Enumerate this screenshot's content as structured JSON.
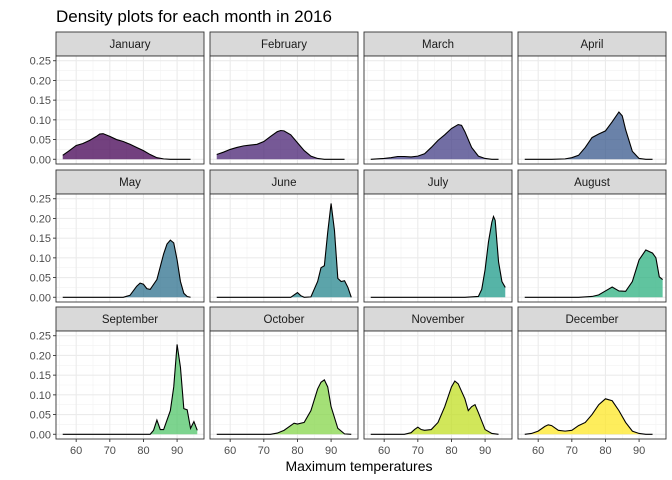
{
  "chart_data": {
    "type": "area",
    "title": "Density plots for each month in 2016",
    "xlabel": "Maximum temperatures",
    "ylabel": "",
    "xlim": [
      54,
      98
    ],
    "ylim": [
      -0.012,
      0.262
    ],
    "x_ticks": [
      60,
      70,
      80,
      90
    ],
    "y_ticks": [
      0.0,
      0.05,
      0.1,
      0.15,
      0.2,
      0.25
    ],
    "y_tick_labels": [
      "0.00",
      "0.05",
      "0.10",
      "0.15",
      "0.20",
      "0.25"
    ],
    "grid": true,
    "layout": "facet_wrap 3 rows x 4 columns",
    "panels": [
      {
        "month": "January",
        "color": "#440154",
        "points": [
          [
            56,
            0.01
          ],
          [
            58,
            0.022
          ],
          [
            60,
            0.035
          ],
          [
            62,
            0.04
          ],
          [
            64,
            0.048
          ],
          [
            66,
            0.058
          ],
          [
            67,
            0.064
          ],
          [
            68,
            0.065
          ],
          [
            70,
            0.058
          ],
          [
            72,
            0.05
          ],
          [
            74,
            0.045
          ],
          [
            76,
            0.038
          ],
          [
            78,
            0.03
          ],
          [
            80,
            0.022
          ],
          [
            82,
            0.012
          ],
          [
            84,
            0.004
          ],
          [
            86,
            0.001
          ],
          [
            88,
            0.0
          ],
          [
            90,
            0.0
          ],
          [
            92,
            0.0
          ],
          [
            94,
            0.0
          ]
        ]
      },
      {
        "month": "February",
        "color": "#482173",
        "points": [
          [
            56,
            0.012
          ],
          [
            58,
            0.018
          ],
          [
            60,
            0.025
          ],
          [
            62,
            0.03
          ],
          [
            64,
            0.034
          ],
          [
            66,
            0.036
          ],
          [
            68,
            0.038
          ],
          [
            70,
            0.045
          ],
          [
            72,
            0.058
          ],
          [
            74,
            0.07
          ],
          [
            75,
            0.073
          ],
          [
            76,
            0.072
          ],
          [
            78,
            0.062
          ],
          [
            80,
            0.042
          ],
          [
            82,
            0.022
          ],
          [
            84,
            0.008
          ],
          [
            86,
            0.002
          ],
          [
            88,
            0.0
          ],
          [
            90,
            0.0
          ],
          [
            92,
            0.0
          ],
          [
            94,
            0.0
          ]
        ]
      },
      {
        "month": "March",
        "color": "#433E85",
        "points": [
          [
            56,
            0.0
          ],
          [
            60,
            0.002
          ],
          [
            62,
            0.004
          ],
          [
            64,
            0.007
          ],
          [
            66,
            0.007
          ],
          [
            68,
            0.006
          ],
          [
            70,
            0.008
          ],
          [
            72,
            0.014
          ],
          [
            74,
            0.03
          ],
          [
            76,
            0.048
          ],
          [
            78,
            0.062
          ],
          [
            80,
            0.078
          ],
          [
            82,
            0.088
          ],
          [
            83,
            0.086
          ],
          [
            84,
            0.07
          ],
          [
            86,
            0.03
          ],
          [
            88,
            0.008
          ],
          [
            90,
            0.002
          ],
          [
            92,
            0.0
          ],
          [
            94,
            0.0
          ]
        ]
      },
      {
        "month": "April",
        "color": "#38588C",
        "points": [
          [
            56,
            0.0
          ],
          [
            64,
            0.0
          ],
          [
            68,
            0.001
          ],
          [
            70,
            0.004
          ],
          [
            72,
            0.01
          ],
          [
            74,
            0.03
          ],
          [
            76,
            0.055
          ],
          [
            78,
            0.064
          ],
          [
            80,
            0.072
          ],
          [
            82,
            0.095
          ],
          [
            84,
            0.12
          ],
          [
            85,
            0.11
          ],
          [
            86,
            0.075
          ],
          [
            88,
            0.02
          ],
          [
            90,
            0.002
          ],
          [
            92,
            0.0
          ],
          [
            94,
            0.0
          ]
        ]
      },
      {
        "month": "May",
        "color": "#2D708E",
        "points": [
          [
            56,
            0.0
          ],
          [
            74,
            0.0
          ],
          [
            76,
            0.005
          ],
          [
            78,
            0.028
          ],
          [
            79,
            0.036
          ],
          [
            80,
            0.033
          ],
          [
            81,
            0.022
          ],
          [
            82,
            0.02
          ],
          [
            84,
            0.045
          ],
          [
            86,
            0.11
          ],
          [
            87,
            0.135
          ],
          [
            88,
            0.145
          ],
          [
            89,
            0.138
          ],
          [
            90,
            0.095
          ],
          [
            91,
            0.04
          ],
          [
            92,
            0.01
          ],
          [
            93,
            0.002
          ],
          [
            94,
            0.0
          ]
        ]
      },
      {
        "month": "June",
        "color": "#25858E",
        "points": [
          [
            56,
            0.0
          ],
          [
            78,
            0.0
          ],
          [
            80,
            0.012
          ],
          [
            81,
            0.004
          ],
          [
            82,
            0.0
          ],
          [
            84,
            0.001
          ],
          [
            86,
            0.04
          ],
          [
            87,
            0.075
          ],
          [
            88,
            0.08
          ],
          [
            89,
            0.165
          ],
          [
            90,
            0.238
          ],
          [
            91,
            0.17
          ],
          [
            92,
            0.048
          ],
          [
            93,
            0.04
          ],
          [
            94,
            0.042
          ],
          [
            95,
            0.025
          ],
          [
            96,
            0.0
          ]
        ]
      },
      {
        "month": "July",
        "color": "#1E9B8A",
        "points": [
          [
            56,
            0.0
          ],
          [
            84,
            0.0
          ],
          [
            88,
            0.002
          ],
          [
            89,
            0.02
          ],
          [
            90,
            0.07
          ],
          [
            91,
            0.14
          ],
          [
            92,
            0.19
          ],
          [
            92.5,
            0.205
          ],
          [
            93,
            0.195
          ],
          [
            94,
            0.09
          ],
          [
            95,
            0.04
          ],
          [
            96,
            0.025
          ]
        ]
      },
      {
        "month": "August",
        "color": "#2BB07F",
        "points": [
          [
            56,
            0.0
          ],
          [
            72,
            0.0
          ],
          [
            76,
            0.002
          ],
          [
            78,
            0.006
          ],
          [
            80,
            0.016
          ],
          [
            82,
            0.026
          ],
          [
            84,
            0.016
          ],
          [
            86,
            0.015
          ],
          [
            88,
            0.04
          ],
          [
            90,
            0.095
          ],
          [
            92,
            0.12
          ],
          [
            94,
            0.112
          ],
          [
            95,
            0.1
          ],
          [
            96,
            0.052
          ],
          [
            97,
            0.045
          ]
        ]
      },
      {
        "month": "September",
        "color": "#51C56A",
        "points": [
          [
            56,
            0.0
          ],
          [
            82,
            0.0
          ],
          [
            83,
            0.01
          ],
          [
            84,
            0.036
          ],
          [
            85,
            0.012
          ],
          [
            86,
            0.012
          ],
          [
            88,
            0.06
          ],
          [
            89,
            0.12
          ],
          [
            90,
            0.228
          ],
          [
            91,
            0.17
          ],
          [
            92,
            0.065
          ],
          [
            93,
            0.062
          ],
          [
            94,
            0.015
          ],
          [
            95,
            0.032
          ],
          [
            96,
            0.01
          ]
        ]
      },
      {
        "month": "October",
        "color": "#85D54A",
        "points": [
          [
            56,
            0.0
          ],
          [
            72,
            0.0
          ],
          [
            74,
            0.003
          ],
          [
            76,
            0.01
          ],
          [
            78,
            0.022
          ],
          [
            79,
            0.028
          ],
          [
            80,
            0.026
          ],
          [
            82,
            0.03
          ],
          [
            84,
            0.06
          ],
          [
            86,
            0.115
          ],
          [
            87,
            0.132
          ],
          [
            88,
            0.138
          ],
          [
            89,
            0.12
          ],
          [
            90,
            0.07
          ],
          [
            92,
            0.015
          ],
          [
            94,
            0.001
          ],
          [
            96,
            0.0
          ]
        ]
      },
      {
        "month": "November",
        "color": "#C2DF23",
        "points": [
          [
            56,
            0.0
          ],
          [
            66,
            0.0
          ],
          [
            68,
            0.004
          ],
          [
            69,
            0.012
          ],
          [
            70,
            0.018
          ],
          [
            71,
            0.012
          ],
          [
            72,
            0.01
          ],
          [
            74,
            0.012
          ],
          [
            76,
            0.03
          ],
          [
            78,
            0.07
          ],
          [
            80,
            0.12
          ],
          [
            81,
            0.135
          ],
          [
            82,
            0.128
          ],
          [
            84,
            0.09
          ],
          [
            85,
            0.06
          ],
          [
            86,
            0.07
          ],
          [
            87,
            0.075
          ],
          [
            88,
            0.055
          ],
          [
            90,
            0.012
          ],
          [
            92,
            0.002
          ],
          [
            94,
            0.0
          ]
        ]
      },
      {
        "month": "December",
        "color": "#FDE725",
        "points": [
          [
            56,
            0.0
          ],
          [
            58,
            0.002
          ],
          [
            60,
            0.008
          ],
          [
            62,
            0.02
          ],
          [
            63,
            0.024
          ],
          [
            64,
            0.022
          ],
          [
            66,
            0.01
          ],
          [
            68,
            0.008
          ],
          [
            70,
            0.01
          ],
          [
            72,
            0.022
          ],
          [
            74,
            0.03
          ],
          [
            76,
            0.05
          ],
          [
            78,
            0.075
          ],
          [
            80,
            0.09
          ],
          [
            82,
            0.085
          ],
          [
            84,
            0.06
          ],
          [
            86,
            0.03
          ],
          [
            88,
            0.008
          ],
          [
            90,
            0.002
          ],
          [
            92,
            0.0
          ],
          [
            94,
            0.0
          ]
        ]
      }
    ]
  }
}
